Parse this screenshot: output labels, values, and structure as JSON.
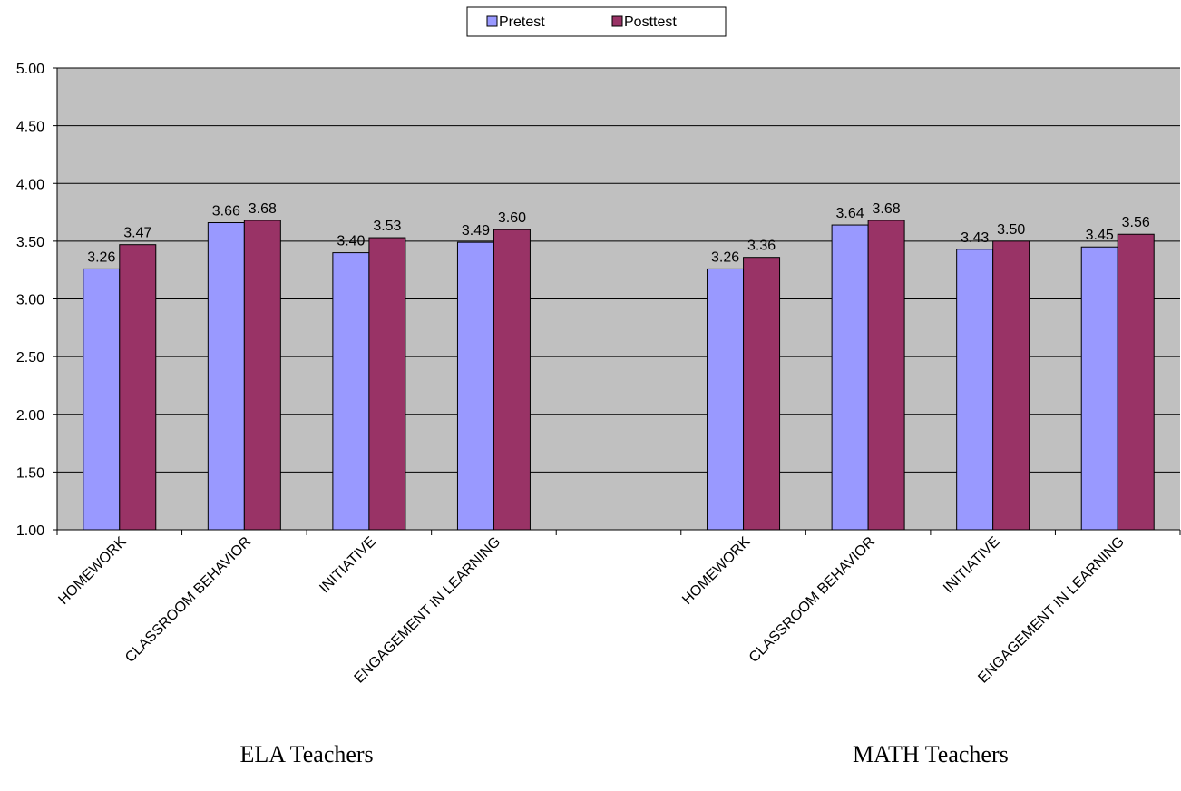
{
  "chart_data": {
    "type": "bar",
    "categories": [
      "HOMEWORK",
      "CLASSROOM BEHAVIOR",
      "INITIATIVE",
      "ENGAGEMENT IN LEARNING",
      null,
      "HOMEWORK",
      "CLASSROOM BEHAVIOR",
      "INITIATIVE",
      "ENGAGEMENT IN LEARNING"
    ],
    "groups": [
      "ELA Teachers",
      "MATH Teachers"
    ],
    "series": [
      {
        "name": "Pretest",
        "color": "#9999ff",
        "values": [
          3.26,
          3.66,
          3.4,
          3.49,
          null,
          3.26,
          3.64,
          3.43,
          3.45
        ],
        "value_labels": [
          "3.26",
          "3.66",
          "3.40",
          "3.49",
          null,
          "3.26",
          "3.64",
          "3.43",
          "3.45"
        ]
      },
      {
        "name": "Posttest",
        "color": "#993366",
        "values": [
          3.47,
          3.68,
          3.53,
          3.6,
          null,
          3.36,
          3.68,
          3.5,
          3.56
        ],
        "value_labels": [
          "3.47",
          "3.68",
          "3.53",
          "3.60",
          null,
          "3.36",
          "3.68",
          "3.50",
          "3.56"
        ]
      }
    ],
    "ylim": [
      1,
      5
    ],
    "yticks": [
      {
        "value": 1,
        "label": "1.00"
      },
      {
        "value": 1.5,
        "label": "1.50"
      },
      {
        "value": 2,
        "label": "2.00"
      },
      {
        "value": 2.5,
        "label": "2.50"
      },
      {
        "value": 3,
        "label": "3.00"
      },
      {
        "value": 3.5,
        "label": "3.50"
      },
      {
        "value": 4,
        "label": "4.00"
      },
      {
        "value": 4.5,
        "label": "4.50"
      },
      {
        "value": 5,
        "label": "5.00"
      }
    ],
    "grid": true,
    "legend": "top",
    "background": "#c0c0c0"
  }
}
